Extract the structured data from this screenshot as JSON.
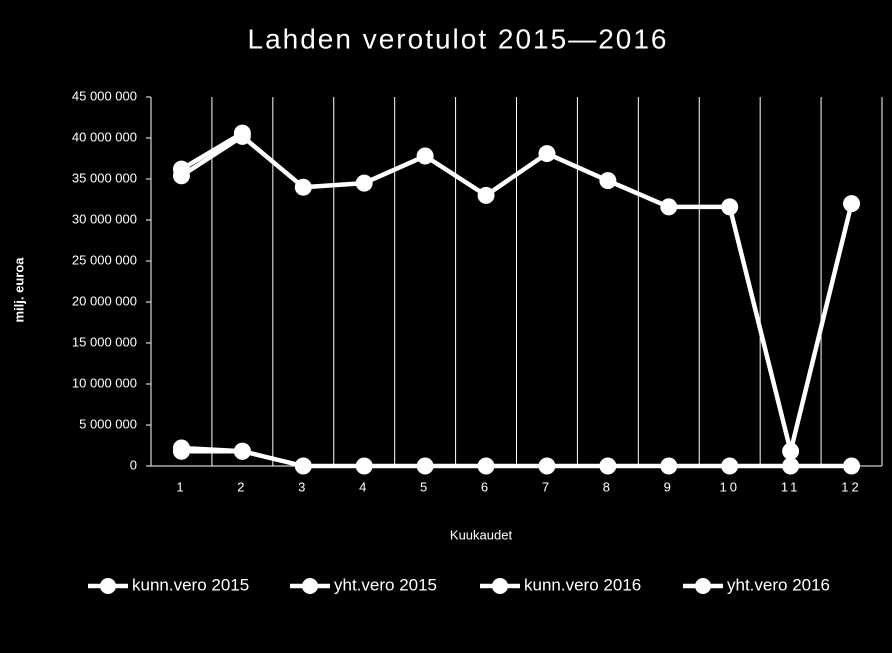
{
  "chart_data": {
    "type": "line",
    "title": "Lahden verotulot 2015—2016",
    "x_label": "Kuukaudet",
    "y_label": "milj. euroa",
    "categories": [
      "1",
      "2",
      "3",
      "4",
      "5",
      "6",
      "7",
      "8",
      "9",
      "10",
      "11",
      "12"
    ],
    "series": [
      {
        "name": "kunn.vero 2015",
        "color": "#ffffff",
        "values": [
          35400000,
          40200000,
          34000000,
          34500000,
          37800000,
          33000000,
          38100000,
          34800000,
          31600000,
          31600000,
          1800000,
          32000000
        ]
      },
      {
        "name": "yht.vero 2015",
        "color": "#ffffff",
        "values": [
          1800000,
          1800000,
          0,
          0,
          0,
          0,
          0,
          0,
          0,
          0,
          0,
          0
        ]
      },
      {
        "name": "kunn.vero 2016",
        "color": "#ffffff",
        "values": [
          36200000,
          40600000,
          null,
          null,
          null,
          null,
          null,
          null,
          null,
          null,
          null,
          null
        ]
      },
      {
        "name": "yht.vero 2016",
        "color": "#ffffff",
        "values": [
          2200000,
          1800000,
          null,
          null,
          null,
          null,
          null,
          null,
          null,
          null,
          null,
          null
        ]
      }
    ],
    "ylim": [
      0,
      45000000
    ],
    "yticks": [
      0,
      {
        "value": 5000000,
        "label": "5 000 000"
      },
      {
        "value": 10000000,
        "label": "10 000 000"
      },
      {
        "value": 15000000,
        "label": "15 000 000"
      },
      {
        "value": 20000000,
        "label": "20 000 000"
      },
      {
        "value": 25000000,
        "label": "25 000 000"
      },
      {
        "value": 30000000,
        "label": "30 000 000"
      },
      {
        "value": 35000000,
        "label": "35 000 000"
      },
      {
        "value": 40000000,
        "label": "40 000 000"
      },
      {
        "value": 45000000,
        "label": "45 000 000"
      }
    ],
    "grid": true,
    "legend": "bottom"
  }
}
